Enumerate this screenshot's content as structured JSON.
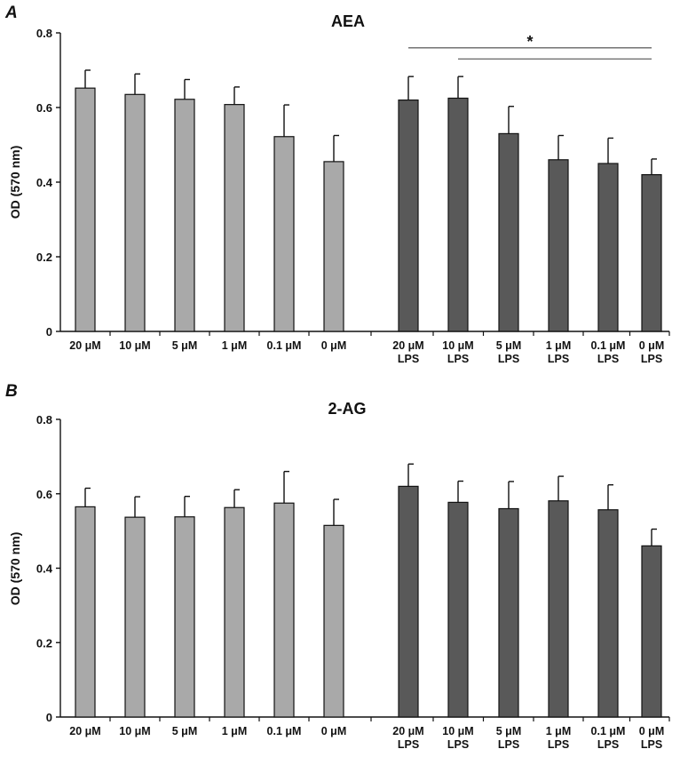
{
  "chart_data": [
    {
      "type": "bar",
      "panel": "A",
      "title": "AEA",
      "xlabel": "",
      "ylabel": "OD (570 nm)",
      "ylim": [
        0,
        0.8
      ],
      "yticks": [
        "0",
        "0.2",
        "0.4",
        "0.6",
        "0.8"
      ],
      "grid": false,
      "categories": [
        [
          "20 μM"
        ],
        [
          "10 μM"
        ],
        [
          "5 μM"
        ],
        [
          "1 μM"
        ],
        [
          "0.1 μM"
        ],
        [
          "0 μM"
        ],
        [
          "20 μM",
          "LPS"
        ],
        [
          "10 μM",
          "LPS"
        ],
        [
          "5 μM",
          "LPS"
        ],
        [
          "1 μM",
          "LPS"
        ],
        [
          "0.1 μM",
          "LPS"
        ],
        [
          "0 μM",
          "LPS"
        ]
      ],
      "values": [
        0.652,
        0.635,
        0.622,
        0.608,
        0.522,
        0.455,
        0.62,
        0.625,
        0.53,
        0.46,
        0.45,
        0.42
      ],
      "errors": [
        0.048,
        0.055,
        0.053,
        0.047,
        0.085,
        0.07,
        0.063,
        0.058,
        0.073,
        0.065,
        0.068,
        0.042
      ],
      "colors": [
        "#a9a9a9",
        "#a9a9a9",
        "#a9a9a9",
        "#a9a9a9",
        "#a9a9a9",
        "#a9a9a9",
        "#595959",
        "#595959",
        "#595959",
        "#595959",
        "#595959",
        "#595959"
      ],
      "significance": [
        {
          "from": 6,
          "to": 11,
          "level": 0.76
        },
        {
          "from": 7,
          "to": 11,
          "level": 0.73
        }
      ],
      "significance_label": "*"
    },
    {
      "type": "bar",
      "panel": "B",
      "title": "2-AG",
      "xlabel": "",
      "ylabel": "OD (570 nm)",
      "ylim": [
        0,
        0.8
      ],
      "yticks": [
        "0",
        "0.2",
        "0.4",
        "0.6",
        "0.8"
      ],
      "grid": false,
      "categories": [
        [
          "20 μM"
        ],
        [
          "10 μM"
        ],
        [
          "5 μM"
        ],
        [
          "1 μM"
        ],
        [
          "0.1 μM"
        ],
        [
          "0 μM"
        ],
        [
          "20 μM",
          "LPS"
        ],
        [
          "10 μM",
          "LPS"
        ],
        [
          "5 μM",
          "LPS"
        ],
        [
          "1 μM",
          "LPS"
        ],
        [
          "0.1 μM",
          "LPS"
        ],
        [
          "0 μM",
          "LPS"
        ]
      ],
      "values": [
        0.565,
        0.537,
        0.538,
        0.563,
        0.575,
        0.515,
        0.62,
        0.577,
        0.56,
        0.581,
        0.557,
        0.46
      ],
      "errors": [
        0.05,
        0.055,
        0.055,
        0.048,
        0.085,
        0.07,
        0.06,
        0.057,
        0.073,
        0.066,
        0.067,
        0.045
      ],
      "colors": [
        "#a9a9a9",
        "#a9a9a9",
        "#a9a9a9",
        "#a9a9a9",
        "#a9a9a9",
        "#a9a9a9",
        "#595959",
        "#595959",
        "#595959",
        "#595959",
        "#595959",
        "#595959"
      ],
      "significance": [],
      "significance_label": ""
    }
  ]
}
